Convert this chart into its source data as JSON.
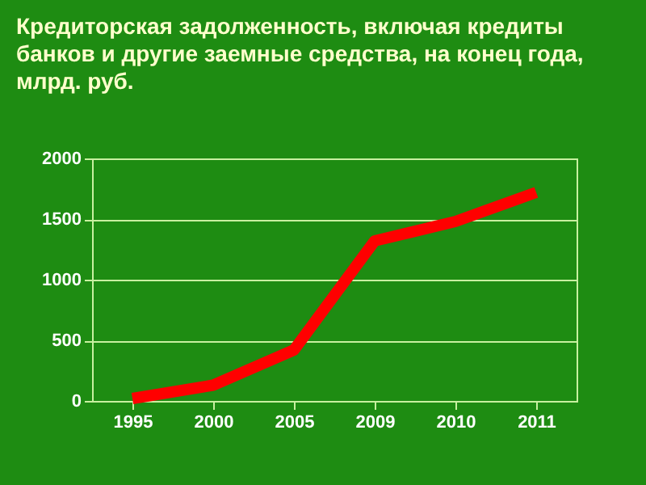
{
  "chart_data": {
    "type": "line",
    "title": "Кредиторская задолженность, включая кредиты банков и другие заемные средства, на конец года, млрд. руб.",
    "categories": [
      "1995",
      "2000",
      "2005",
      "2009",
      "2010",
      "2011"
    ],
    "series": [
      {
        "color": "#ff0000",
        "values": [
          20,
          130,
          420,
          1320,
          1480,
          1720
        ]
      }
    ],
    "ylim": [
      0,
      2000
    ],
    "yticks": [
      0,
      500,
      1000,
      1500,
      2000
    ],
    "grid": "y",
    "legend": false,
    "marker": "none"
  }
}
